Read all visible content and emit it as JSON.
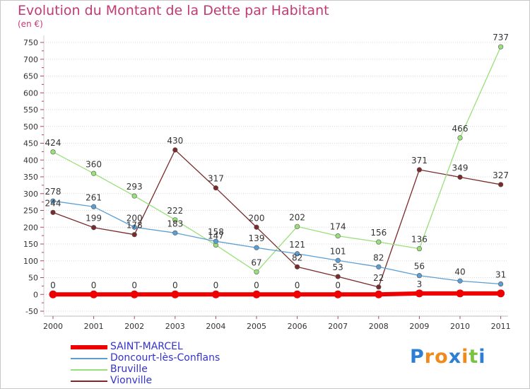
{
  "chart_data": {
    "type": "line",
    "title": "Evolution du Montant de la Dette par Habitant",
    "subtitle": "(en €)",
    "xlabel": "",
    "ylabel": "",
    "ylim": [
      -50,
      750
    ],
    "ytick_step": 50,
    "grid": "horizontal dotted",
    "legend_placement": "bottom-left",
    "categories": [
      "2000",
      "2001",
      "2002",
      "2003",
      "2004",
      "2005",
      "2006",
      "2007",
      "2008",
      "2009",
      "2010",
      "2011"
    ],
    "series": [
      {
        "name": "SAINT-MARCEL",
        "color": "#ee0000",
        "values": [
          0,
          0,
          0,
          0,
          0,
          0,
          0,
          0,
          0,
          3,
          3,
          3
        ],
        "labels": [
          "0",
          "0",
          "0",
          "0",
          "0",
          "0",
          "0",
          "0",
          "",
          "3",
          "",
          ""
        ]
      },
      {
        "name": "Doncourt-lès-Conflans",
        "color": "#5b9ed4",
        "values": [
          278,
          261,
          200,
          183,
          158,
          139,
          121,
          101,
          82,
          56,
          40,
          31
        ],
        "labels": [
          "278",
          "261",
          "200",
          "183",
          "158",
          "139",
          "121",
          "101",
          "82",
          "56",
          "40",
          "31"
        ]
      },
      {
        "name": "Bruville",
        "color": "#99e07a",
        "values": [
          424,
          360,
          293,
          222,
          147,
          67,
          202,
          174,
          156,
          136,
          466,
          737
        ],
        "labels": [
          "424",
          "360",
          "293",
          "222",
          "147",
          "67",
          "202",
          "174",
          "156",
          "136",
          "466",
          "737"
        ]
      },
      {
        "name": "Vionville",
        "color": "#7a2a2a",
        "values": [
          244,
          199,
          178,
          430,
          317,
          200,
          82,
          53,
          22,
          371,
          349,
          327
        ],
        "labels": [
          "244",
          "199",
          "178",
          "430",
          "317",
          "200",
          "82",
          "53",
          "22",
          "371",
          "349",
          "327"
        ]
      }
    ]
  },
  "brand": {
    "letters": [
      "P",
      "r",
      "o",
      "x",
      "i",
      "t",
      "i"
    ],
    "colors": [
      "#2d7fd3",
      "#f08a1c",
      "#f08a1c",
      "#2d7fd3",
      "#f08a1c",
      "#7cc242",
      "#2d7fd3"
    ]
  }
}
